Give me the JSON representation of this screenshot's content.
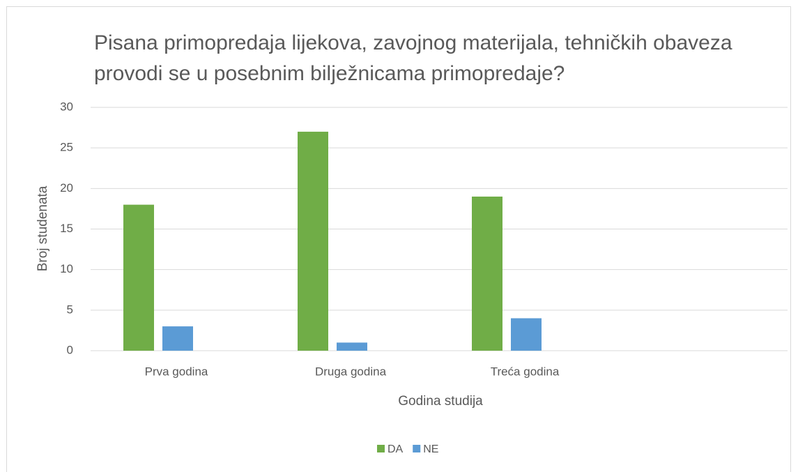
{
  "chart_data": {
    "type": "bar",
    "title": "Pisana primopredaja lijekova, zavojnog materijala, tehničkih obaveza provodi se u posebnim bilježnicama primopredaje?",
    "x_label": "Godina studija",
    "y_label": "Broj studenata",
    "categories": [
      "Prva godina",
      "Druga godina",
      "Treća godina",
      null
    ],
    "series": [
      {
        "name": "DA",
        "color": "#70ad47",
        "values": [
          18,
          27,
          19,
          null
        ]
      },
      {
        "name": "NE",
        "color": "#5b9bd5",
        "values": [
          3,
          1,
          4,
          null
        ]
      }
    ],
    "ylim": [
      0,
      30
    ],
    "yticks": [
      0,
      5,
      10,
      15,
      20,
      25,
      30
    ],
    "grid": true,
    "legend": "bottom"
  }
}
